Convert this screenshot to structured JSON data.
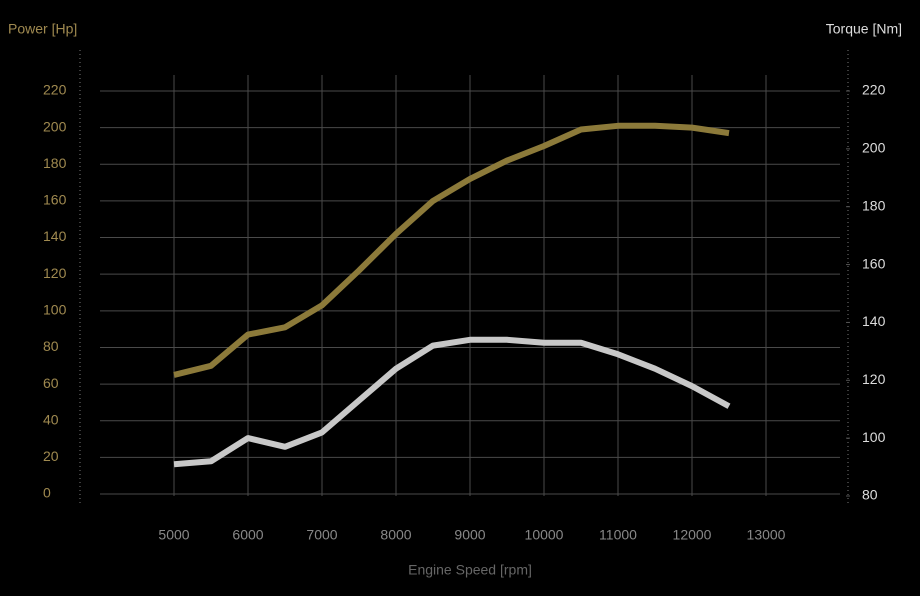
{
  "chart_data": {
    "type": "line",
    "y_label": "Power [Hp]",
    "y2_label": "Torque [Nm]",
    "x_label": "Engine Speed [rpm]",
    "x": [
      5000,
      5500,
      6000,
      6500,
      7000,
      7500,
      8000,
      8500,
      9000,
      9500,
      10000,
      10500,
      11000,
      11500,
      12000,
      12500
    ],
    "series": [
      {
        "name": "Power",
        "color": "#8c7a3a",
        "values": [
          65,
          70,
          87,
          91,
          103,
          122,
          142,
          160,
          172,
          182,
          190,
          199,
          201,
          201,
          200,
          197
        ]
      },
      {
        "name": "Torque",
        "color": "#c8c8c8",
        "axis": "y2",
        "values": [
          91,
          92,
          100,
          97,
          102,
          113,
          124,
          132,
          134,
          134,
          133,
          133,
          129,
          124,
          118,
          111
        ]
      }
    ],
    "xlim": [
      4000,
      14000
    ],
    "xticks": [
      5000,
      6000,
      7000,
      8000,
      9000,
      10000,
      11000,
      12000,
      13000
    ],
    "ylim": [
      0,
      220
    ],
    "yticks": [
      0,
      20,
      40,
      60,
      80,
      100,
      120,
      140,
      160,
      180,
      200,
      220
    ],
    "y2lim": [
      80,
      220
    ],
    "y2ticks": [
      80,
      100,
      120,
      140,
      160,
      180,
      200,
      220
    ],
    "grid": true
  }
}
